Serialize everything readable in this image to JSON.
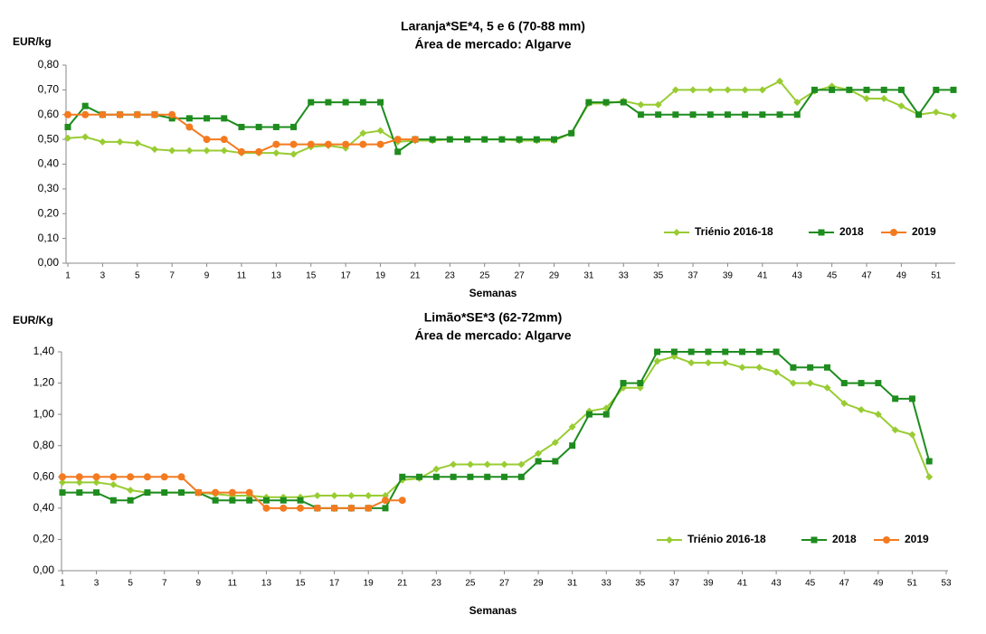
{
  "chart_data": [
    {
      "type": "line",
      "title": "Laranja*SE*4, 5 e  6 (70-88 mm)",
      "subtitle": "Área de mercado: Algarve",
      "ylabel": "EUR/kg",
      "xlabel": "Semanas",
      "x": [
        1,
        2,
        3,
        4,
        5,
        6,
        7,
        8,
        9,
        10,
        11,
        12,
        13,
        14,
        15,
        16,
        17,
        18,
        19,
        20,
        21,
        22,
        23,
        24,
        25,
        26,
        27,
        28,
        29,
        30,
        31,
        32,
        33,
        34,
        35,
        36,
        37,
        38,
        39,
        40,
        41,
        42,
        43,
        44,
        45,
        46,
        47,
        48,
        49,
        50,
        51,
        52
      ],
      "xlim": [
        1,
        52
      ],
      "xticks": [
        1,
        3,
        5,
        7,
        9,
        11,
        13,
        15,
        17,
        19,
        21,
        23,
        25,
        27,
        29,
        31,
        33,
        35,
        37,
        39,
        41,
        43,
        45,
        47,
        49,
        51
      ],
      "ylim": [
        0,
        0.8
      ],
      "yticks": [
        {
          "value": 0,
          "label": "0,00"
        },
        {
          "value": 0.1,
          "label": "0,10"
        },
        {
          "value": 0.2,
          "label": "0,20"
        },
        {
          "value": 0.3,
          "label": "0,30"
        },
        {
          "value": 0.4,
          "label": "0,40"
        },
        {
          "value": 0.5,
          "label": "0,50"
        },
        {
          "value": 0.6,
          "label": "0,60"
        },
        {
          "value": 0.7,
          "label": "0,70"
        },
        {
          "value": 0.8,
          "label": "0,80"
        }
      ],
      "grid": false,
      "legend": "lower right",
      "series": [
        {
          "name": "Triénio 2016-18",
          "color": "#99cc33",
          "marker": "diamond",
          "values": [
            0.505,
            0.51,
            0.49,
            0.49,
            0.485,
            0.46,
            0.455,
            0.455,
            0.455,
            0.455,
            0.445,
            0.445,
            0.445,
            0.44,
            0.47,
            0.475,
            0.465,
            0.525,
            0.535,
            0.49,
            0.495,
            0.495,
            0.5,
            0.5,
            0.5,
            0.5,
            0.495,
            0.495,
            0.495,
            0.525,
            0.645,
            0.645,
            0.655,
            0.64,
            0.64,
            0.7,
            0.7,
            0.7,
            0.7,
            0.7,
            0.7,
            0.735,
            0.65,
            0.695,
            0.715,
            0.7,
            0.665,
            0.665,
            0.635,
            0.6,
            0.61,
            0.595
          ]
        },
        {
          "name": "2018",
          "color": "#1e8c1e",
          "marker": "square",
          "values": [
            0.55,
            0.635,
            0.6,
            0.6,
            0.6,
            0.6,
            0.585,
            0.585,
            0.585,
            0.585,
            0.55,
            0.55,
            0.55,
            0.55,
            0.65,
            0.65,
            0.65,
            0.65,
            0.65,
            0.45,
            0.5,
            0.5,
            0.5,
            0.5,
            0.5,
            0.5,
            0.5,
            0.5,
            0.5,
            0.525,
            0.65,
            0.65,
            0.65,
            0.6,
            0.6,
            0.6,
            0.6,
            0.6,
            0.6,
            0.6,
            0.6,
            0.6,
            0.6,
            0.7,
            0.7,
            0.7,
            0.7,
            0.7,
            0.7,
            0.6,
            0.7,
            0.7
          ]
        },
        {
          "name": "2019",
          "color": "#f47a20",
          "marker": "circle",
          "values": [
            0.6,
            0.6,
            0.6,
            0.6,
            0.6,
            0.6,
            0.6,
            0.55,
            0.5,
            0.5,
            0.45,
            0.45,
            0.48,
            0.48,
            0.48,
            0.48,
            0.48,
            0.48,
            0.48,
            0.5,
            0.5,
            null,
            null,
            null,
            null,
            null,
            null,
            null,
            null,
            null,
            null,
            null,
            null,
            null,
            null,
            null,
            null,
            null,
            null,
            null,
            null,
            null,
            null,
            null,
            null,
            null,
            null,
            null,
            null,
            null,
            null,
            null
          ]
        }
      ]
    },
    {
      "type": "line",
      "title": "Limão*SE*3 (62-72mm)",
      "subtitle": "Área de mercado: Algarve",
      "ylabel": "EUR/Kg",
      "xlabel": "Semanas",
      "x": [
        1,
        2,
        3,
        4,
        5,
        6,
        7,
        8,
        9,
        10,
        11,
        12,
        13,
        14,
        15,
        16,
        17,
        18,
        19,
        20,
        21,
        22,
        23,
        24,
        25,
        26,
        27,
        28,
        29,
        30,
        31,
        32,
        33,
        34,
        35,
        36,
        37,
        38,
        39,
        40,
        41,
        42,
        43,
        44,
        45,
        46,
        47,
        48,
        49,
        50,
        51,
        52,
        53
      ],
      "xlim": [
        1,
        53
      ],
      "xticks": [
        1,
        3,
        5,
        7,
        9,
        11,
        13,
        15,
        17,
        19,
        21,
        23,
        25,
        27,
        29,
        31,
        33,
        35,
        37,
        39,
        41,
        43,
        45,
        47,
        49,
        51,
        53
      ],
      "ylim": [
        0,
        1.4
      ],
      "yticks": [
        {
          "value": 0,
          "label": "0,00"
        },
        {
          "value": 0.2,
          "label": "0,20"
        },
        {
          "value": 0.4,
          "label": "0,40"
        },
        {
          "value": 0.6,
          "label": "0,60"
        },
        {
          "value": 0.8,
          "label": "0,80"
        },
        {
          "value": 1,
          "label": "1,00"
        },
        {
          "value": 1.2,
          "label": "1,20"
        },
        {
          "value": 1.4,
          "label": "1,40"
        }
      ],
      "grid": false,
      "legend": "lower right",
      "series": [
        {
          "name": "Triénio 2016-18",
          "color": "#99cc33",
          "marker": "diamond",
          "values": [
            0.565,
            0.565,
            0.565,
            0.55,
            0.515,
            0.5,
            0.5,
            0.5,
            0.5,
            0.49,
            0.48,
            0.48,
            0.47,
            0.47,
            0.47,
            0.48,
            0.48,
            0.48,
            0.48,
            0.48,
            0.58,
            0.59,
            0.65,
            0.68,
            0.68,
            0.68,
            0.68,
            0.68,
            0.75,
            0.82,
            0.92,
            1.02,
            1.04,
            1.17,
            1.17,
            1.34,
            1.37,
            1.33,
            1.33,
            1.33,
            1.3,
            1.3,
            1.27,
            1.2,
            1.2,
            1.17,
            1.07,
            1.03,
            1.0,
            0.9,
            0.87,
            0.6,
            null
          ]
        },
        {
          "name": "2018",
          "color": "#1e8c1e",
          "marker": "square",
          "values": [
            0.5,
            0.5,
            0.5,
            0.45,
            0.45,
            0.5,
            0.5,
            0.5,
            0.5,
            0.45,
            0.45,
            0.45,
            0.45,
            0.45,
            0.45,
            0.4,
            0.4,
            0.4,
            0.4,
            0.4,
            0.6,
            0.6,
            0.6,
            0.6,
            0.6,
            0.6,
            0.6,
            0.6,
            0.7,
            0.7,
            0.8,
            1.0,
            1.0,
            1.2,
            1.2,
            1.4,
            1.4,
            1.4,
            1.4,
            1.4,
            1.4,
            1.4,
            1.4,
            1.3,
            1.3,
            1.3,
            1.2,
            1.2,
            1.2,
            1.1,
            1.1,
            0.7,
            null
          ]
        },
        {
          "name": "2019",
          "color": "#f47a20",
          "marker": "circle",
          "values": [
            0.6,
            0.6,
            0.6,
            0.6,
            0.6,
            0.6,
            0.6,
            0.6,
            0.5,
            0.5,
            0.5,
            0.5,
            0.4,
            0.4,
            0.4,
            0.4,
            0.4,
            0.4,
            0.4,
            0.45,
            0.45,
            null,
            null,
            null,
            null,
            null,
            null,
            null,
            null,
            null,
            null,
            null,
            null,
            null,
            null,
            null,
            null,
            null,
            null,
            null,
            null,
            null,
            null,
            null,
            null,
            null,
            null,
            null,
            null,
            null,
            null,
            null,
            null
          ]
        }
      ]
    }
  ]
}
